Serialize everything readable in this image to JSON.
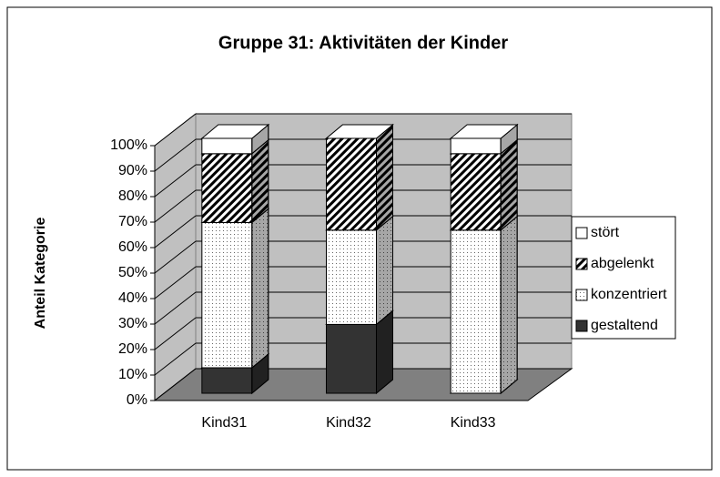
{
  "chart_data": {
    "type": "bar3d_stacked_percent",
    "title": "Gruppe 31: Aktivitäten der Kinder",
    "y_label": "Anteil Kategorie",
    "categories": [
      "Kind31",
      "Kind32",
      "Kind33"
    ],
    "series": [
      {
        "name": "gestaltend",
        "color": "#333333",
        "pattern": "solid",
        "values": [
          10,
          27,
          0
        ]
      },
      {
        "name": "konzentriert",
        "color": "#ffffff",
        "pattern": "dots",
        "values": [
          57,
          37,
          64
        ]
      },
      {
        "name": "abgelenkt",
        "color": "#ffffff",
        "pattern": "hatch",
        "values": [
          27,
          36,
          30
        ]
      },
      {
        "name": "stört",
        "color": "#ffffff",
        "pattern": "solid",
        "values": [
          6,
          0,
          6
        ]
      }
    ],
    "ylim": [
      0,
      100
    ],
    "yticks": [
      {
        "value": 0,
        "label": "0%"
      },
      {
        "value": 10,
        "label": "10%"
      },
      {
        "value": 20,
        "label": "20%"
      },
      {
        "value": 30,
        "label": "30%"
      },
      {
        "value": 40,
        "label": "40%"
      },
      {
        "value": 50,
        "label": "50%"
      },
      {
        "value": 60,
        "label": "60%"
      },
      {
        "value": 70,
        "label": "70%"
      },
      {
        "value": 80,
        "label": "80%"
      },
      {
        "value": 90,
        "label": "90%"
      },
      {
        "value": 100,
        "label": "100%"
      }
    ],
    "grid": true,
    "legend": "right"
  }
}
